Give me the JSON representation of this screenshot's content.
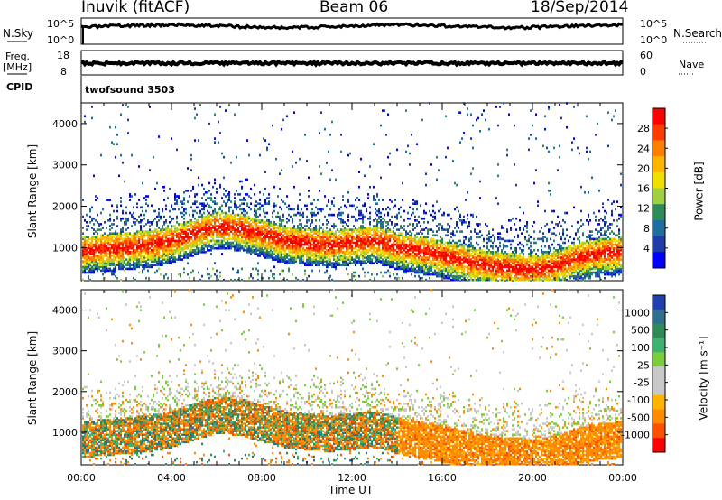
{
  "header": {
    "station": "Inuvik (fitACF)",
    "beam": "Beam 06",
    "date": "18/Sep/2014"
  },
  "top_panels": {
    "nsky_label": "N.Sky",
    "nsky_ticks": [
      "10^5",
      "10^0"
    ],
    "nsearch_label": "N.Search",
    "nsearch_ticks": [
      "10^5",
      "10^0"
    ],
    "freq_label": "Freq.",
    "freq_unit": "[MHz]",
    "freq_ticks": [
      "18",
      "8"
    ],
    "nave_label": "Nave",
    "nave_ticks": [
      "60",
      "0"
    ],
    "cpid_label": "CPID",
    "cpid_value": "twofsound 3503"
  },
  "chart_data": [
    {
      "type": "heatmap",
      "name": "power",
      "ylabel": "Slant Range [km]",
      "xlabel": "",
      "xlim": [
        0,
        24
      ],
      "ylim": [
        200,
        4500
      ],
      "y_ticks": [
        "4000",
        "3000",
        "2000",
        "1000"
      ],
      "colorbar_label": "Power [dB]",
      "colorbar_ticks": [
        "28",
        "24",
        "20",
        "16",
        "12",
        "8",
        "4"
      ],
      "colorbar_colors": [
        "#ff0000",
        "#ff3c00",
        "#ff8000",
        "#ffb400",
        "#f0e000",
        "#a0d040",
        "#2e8b57",
        "#1e6fa0",
        "#1e3caa",
        "#0000ff"
      ],
      "main_echo_band_km": [
        [
          0,
          900
        ],
        [
          1,
          950
        ],
        [
          2,
          1000
        ],
        [
          3,
          1050
        ],
        [
          4,
          1150
        ],
        [
          5,
          1350
        ],
        [
          6,
          1500
        ],
        [
          7,
          1450
        ],
        [
          8,
          1300
        ],
        [
          9,
          1150
        ],
        [
          10,
          1100
        ],
        [
          11,
          1050
        ],
        [
          12,
          1100
        ],
        [
          13,
          1150
        ],
        [
          14,
          1000
        ],
        [
          15,
          900
        ],
        [
          16,
          800
        ],
        [
          17,
          650
        ],
        [
          18,
          550
        ],
        [
          19,
          500
        ],
        [
          20,
          450
        ],
        [
          21,
          550
        ],
        [
          22,
          750
        ],
        [
          23,
          850
        ],
        [
          24,
          900
        ]
      ]
    },
    {
      "type": "heatmap",
      "name": "velocity",
      "ylabel": "Slant Range [km]",
      "xlabel": "Time UT",
      "xlim": [
        0,
        24
      ],
      "ylim": [
        200,
        4500
      ],
      "x_ticks": [
        "00:00",
        "04:00",
        "08:00",
        "12:00",
        "16:00",
        "20:00",
        "00:00"
      ],
      "y_ticks": [
        "4000",
        "3000",
        "2000",
        "1000"
      ],
      "colorbar_label": "Velocity [m s⁻¹]",
      "colorbar_ticks": [
        "1000",
        "500",
        "100",
        "25",
        "-25",
        "-100",
        "-500",
        "-1000"
      ],
      "colorbar_colors": [
        "#2040b0",
        "#2e6f8e",
        "#2e8b57",
        "#3cb371",
        "#7ccd3c",
        "#c8c8c8",
        "#c8c8c8",
        "#ffb400",
        "#ff8c00",
        "#ff5000",
        "#ff0000"
      ]
    }
  ]
}
